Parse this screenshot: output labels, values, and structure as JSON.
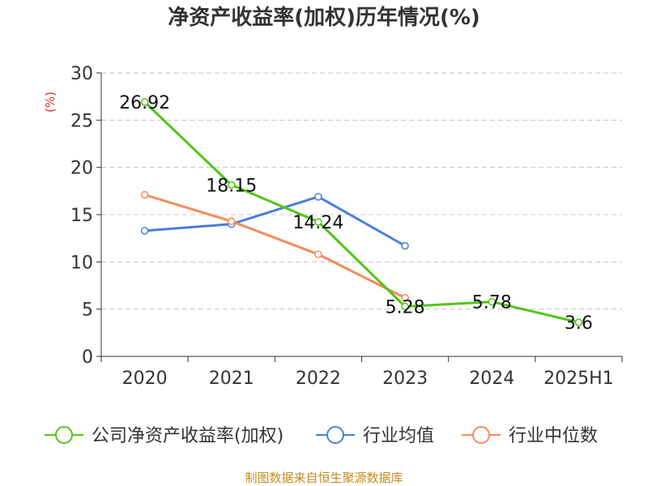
{
  "chart_data": {
    "type": "line",
    "title": "净资产收益率(加权)历年情况(%)",
    "ylabel": "(%)",
    "categories": [
      "2020",
      "2021",
      "2022",
      "2023",
      "2024",
      "2025H1"
    ],
    "ylim": [
      0,
      30
    ],
    "yticks": [
      0,
      5,
      10,
      15,
      20,
      25,
      30
    ],
    "grid": true,
    "legend_position": "bottom",
    "series": [
      {
        "name": "公司净资产收益率(加权)",
        "color": "#52c41a",
        "values": [
          26.92,
          18.15,
          14.24,
          5.28,
          5.78,
          3.6
        ],
        "labels": [
          "26.92",
          "18.15",
          "14.24",
          "5.28",
          "5.78",
          "3.6"
        ]
      },
      {
        "name": "行业均值",
        "color": "#4a7fdb",
        "values": [
          13.3,
          14.0,
          16.9,
          11.7,
          null,
          null
        ]
      },
      {
        "name": "行业中位数",
        "color": "#f58b5c",
        "values": [
          17.1,
          14.3,
          10.8,
          6.2,
          null,
          null
        ]
      }
    ]
  },
  "source": "制图数据来自恒生聚源数据库"
}
